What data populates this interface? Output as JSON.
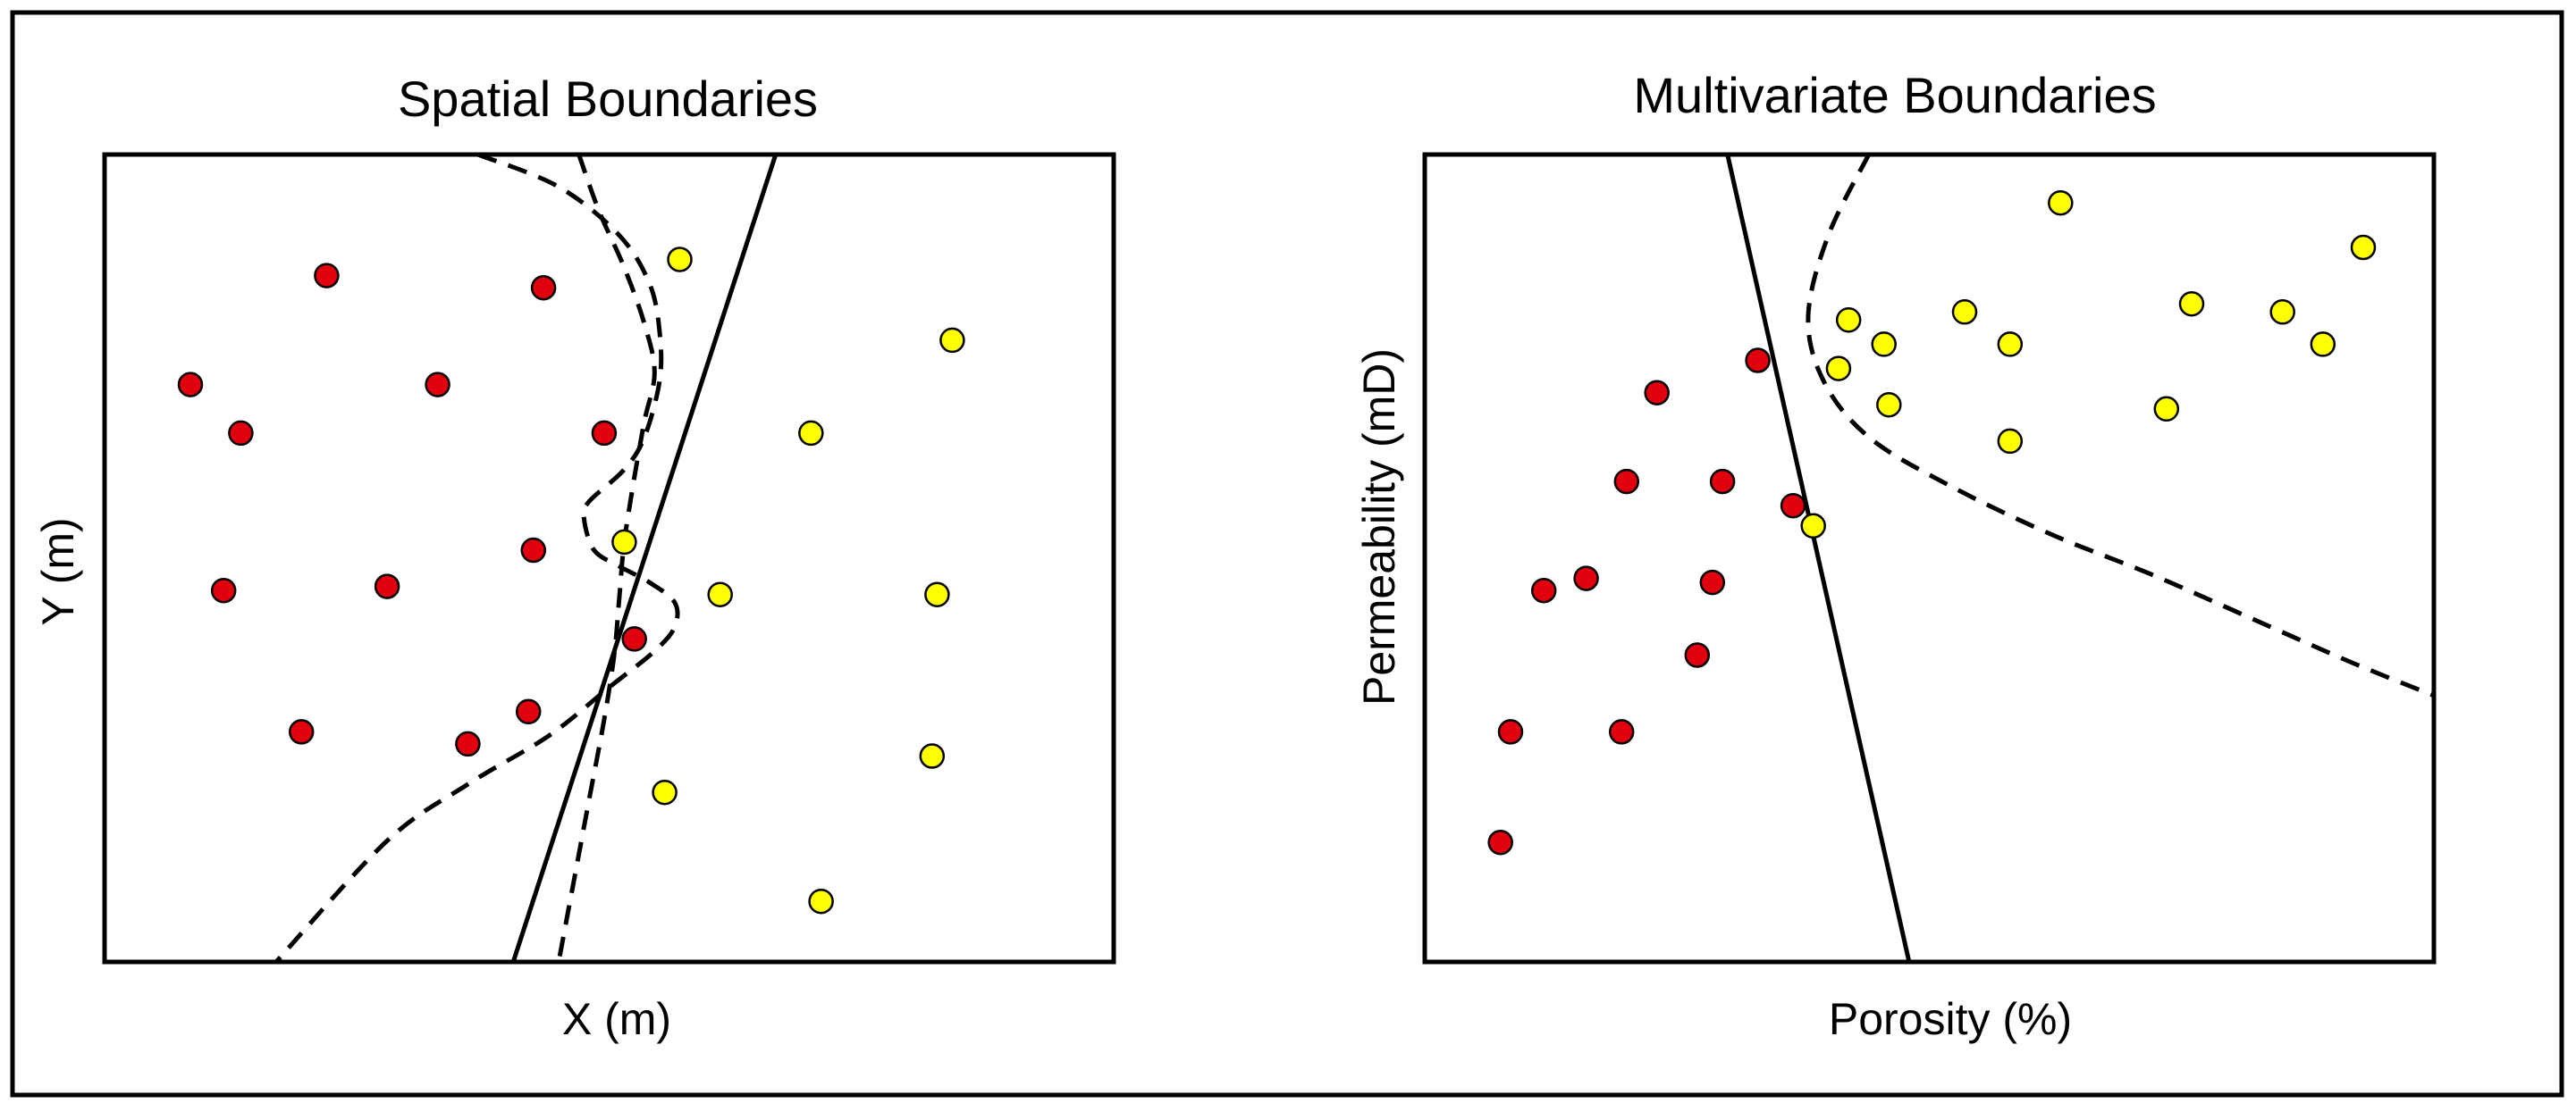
{
  "colors": {
    "class_a": "#e0000e",
    "class_b": "#ffff00",
    "outline": "#000000"
  },
  "chart_data": [
    {
      "type": "scatter",
      "title": "Spatial Boundaries",
      "xlabel": "X (m)",
      "ylabel": "Y (m)",
      "xlim": [
        0,
        100
      ],
      "ylim": [
        0,
        100
      ],
      "grid": false,
      "series": [
        {
          "color": "red",
          "points": [
            [
              22,
              85
            ],
            [
              43.5,
              83.5
            ],
            [
              8.5,
              71.5
            ],
            [
              33,
              71.5
            ],
            [
              13.5,
              65.5
            ],
            [
              49.5,
              65.5
            ],
            [
              42.5,
              51
            ],
            [
              11.8,
              46
            ],
            [
              28,
              46.5
            ],
            [
              52.5,
              40
            ],
            [
              19.5,
              28.5
            ],
            [
              36,
              27
            ],
            [
              42,
              31
            ]
          ]
        },
        {
          "color": "yellow",
          "points": [
            [
              57,
              87
            ],
            [
              84,
              77
            ],
            [
              70,
              65.5
            ],
            [
              51.5,
              52
            ],
            [
              61,
              45.5
            ],
            [
              82.5,
              45.5
            ],
            [
              82,
              25.5
            ],
            [
              55.5,
              21
            ],
            [
              71,
              7.5
            ]
          ]
        }
      ],
      "boundaries": [
        {
          "style": "solid",
          "points": [
            [
              66.5,
              100
            ],
            [
              40.5,
              0
            ]
          ]
        },
        {
          "style": "dashed",
          "points": [
            [
              37,
              100
            ],
            [
              45,
              96
            ],
            [
              51,
              90
            ],
            [
              54,
              84
            ],
            [
              55,
              78
            ],
            [
              55,
              72
            ],
            [
              53.5,
              65
            ],
            [
              51.5,
              61
            ],
            [
              48,
              57
            ],
            [
              47.5,
              55
            ],
            [
              48.5,
              51
            ],
            [
              51,
              49
            ],
            [
              54,
              47
            ],
            [
              56.5,
              44.5
            ],
            [
              56.5,
              41.5
            ],
            [
              54.5,
              38.5
            ],
            [
              50,
              34
            ],
            [
              44,
              28
            ],
            [
              36,
              22
            ],
            [
              28,
              15
            ],
            [
              17,
              0
            ]
          ]
        },
        {
          "style": "dashed",
          "points": [
            [
              47,
              100
            ],
            [
              49,
              93
            ],
            [
              51.5,
              86
            ],
            [
              53.5,
              79
            ],
            [
              54.5,
              73
            ],
            [
              53.5,
              67
            ],
            [
              52.5,
              60
            ],
            [
              51.5,
              52
            ],
            [
              51,
              45
            ],
            [
              50.5,
              38
            ],
            [
              49.5,
              30
            ],
            [
              48,
              20
            ],
            [
              46.5,
              10
            ],
            [
              45,
              0
            ]
          ]
        }
      ]
    },
    {
      "type": "scatter",
      "title": "Multivariate Boundaries",
      "xlabel": "Porosity (%)",
      "ylabel": "Permeability (mD)",
      "xlim": [
        0,
        100
      ],
      "ylim": [
        0,
        100
      ],
      "grid": false,
      "series": [
        {
          "color": "red",
          "points": [
            [
              33,
              74.5
            ],
            [
              23,
              70.5
            ],
            [
              20,
              59.5
            ],
            [
              29.5,
              59.5
            ],
            [
              36.5,
              56.5
            ],
            [
              11.8,
              46
            ],
            [
              16,
              47.5
            ],
            [
              28.5,
              47
            ],
            [
              27,
              38
            ],
            [
              8.5,
              28.5
            ],
            [
              19.5,
              28.5
            ],
            [
              7.5,
              14.8
            ]
          ]
        },
        {
          "color": "yellow",
          "points": [
            [
              63,
              94
            ],
            [
              93,
              88.5
            ],
            [
              76,
              81.5
            ],
            [
              85,
              80.5
            ],
            [
              53.5,
              80.5
            ],
            [
              42,
              79.5
            ],
            [
              45.5,
              76.5
            ],
            [
              58,
              76.5
            ],
            [
              89,
              76.5
            ],
            [
              41,
              73.5
            ],
            [
              46,
              69
            ],
            [
              73.5,
              68.5
            ],
            [
              58,
              64.5
            ],
            [
              38.5,
              54
            ]
          ]
        }
      ],
      "boundaries": [
        {
          "style": "solid",
          "points": [
            [
              30,
              100
            ],
            [
              48,
              0
            ]
          ]
        },
        {
          "style": "dashed",
          "points": [
            [
              44,
              100
            ],
            [
              40,
              90
            ],
            [
              38,
              80
            ],
            [
              39.5,
              72
            ],
            [
              44,
              65
            ],
            [
              52,
              59
            ],
            [
              62,
              53
            ],
            [
              72,
              48
            ],
            [
              82,
              42.5
            ],
            [
              92,
              37
            ],
            [
              100,
              33
            ]
          ]
        }
      ]
    }
  ]
}
